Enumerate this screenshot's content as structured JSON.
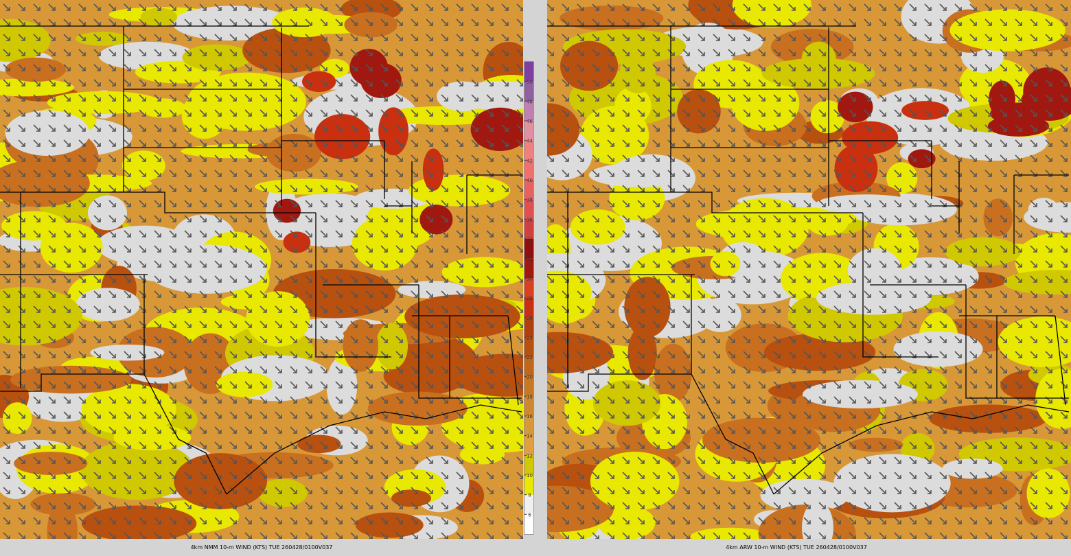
{
  "panels": [
    {
      "caption": "4km NMM 10-m WIND (KTS) TUE 260428/0100V037"
    },
    {
      "caption": "4km ARW 10-m WIND (KTS) TUE 260428/0100V037"
    }
  ],
  "colorbar": {
    "range": [
      4,
      52
    ],
    "ticks": [
      6,
      8,
      10,
      12,
      14,
      16,
      18,
      20,
      22,
      24,
      26,
      28,
      30,
      32,
      34,
      36,
      38,
      40,
      42,
      44,
      46,
      48,
      50
    ],
    "colors": [
      "#ffffff",
      "#f0f0f0",
      "#e8e800",
      "#d0c800",
      "#e0a040",
      "#d89838",
      "#d08830",
      "#c87820",
      "#c06818",
      "#b85010",
      "#b04010",
      "#c83010",
      "#d84020",
      "#a01810",
      "#901010",
      "#d04040",
      "#e05050",
      "#e86060",
      "#f07070",
      "#f08080",
      "#e090a0",
      "#c080b0",
      "#9060a0",
      "#8040a0"
    ]
  }
}
